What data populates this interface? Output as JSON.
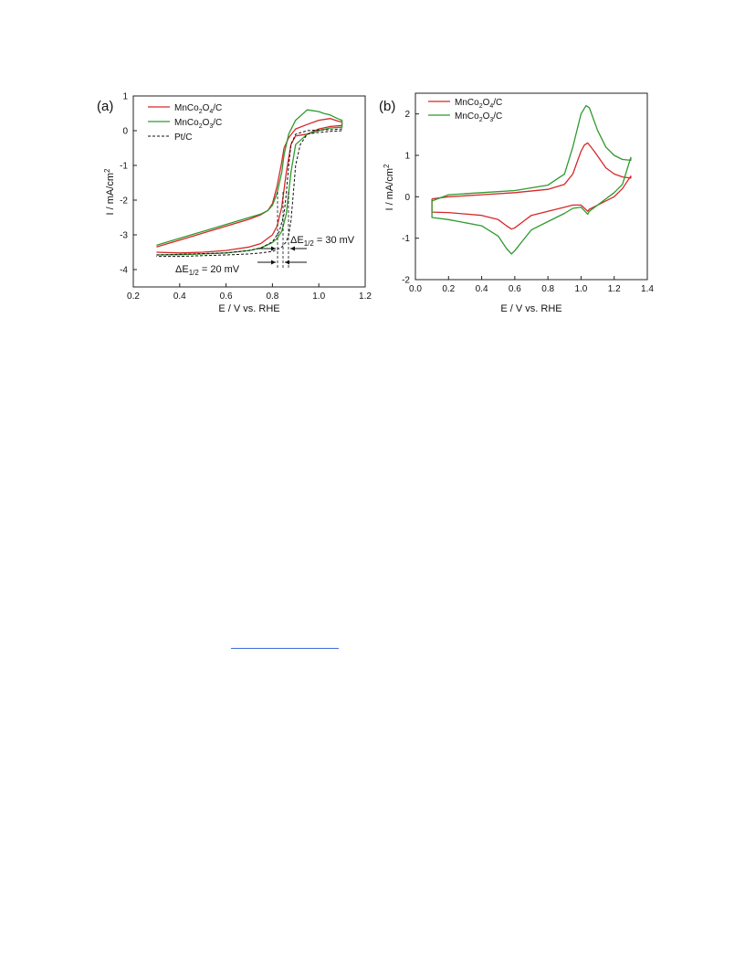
{
  "chart_data": [
    {
      "panel_label": "(a)",
      "type": "line",
      "xlabel": "E /  V vs. RHE",
      "ylabel": "I / mA/cm",
      "ylabel_sup": "2",
      "xlim": [
        0.2,
        1.2
      ],
      "ylim": [
        -4.5,
        1
      ],
      "xticks": [
        0.2,
        0.4,
        0.6,
        0.8,
        1.0,
        1.2
      ],
      "xtick_labels": [
        "0.2",
        "0.4",
        "0.6",
        "0.8",
        "1.0",
        "1.2"
      ],
      "yticks": [
        1,
        0,
        -1,
        -2,
        -3,
        -4
      ],
      "ytick_labels": [
        "1",
        "0",
        "-1",
        "-2",
        "-3",
        "-4"
      ],
      "grid": false,
      "legend_position": "top-left",
      "series": [
        {
          "name": "MnCo",
          "sub1": "2",
          "mid": "O",
          "sub2": "4",
          "tail": "/C",
          "color": "#d62728",
          "dash": false,
          "x": [
            0.3,
            0.4,
            0.5,
            0.6,
            0.7,
            0.75,
            0.78,
            0.8,
            0.82,
            0.84,
            0.85,
            0.87,
            0.9,
            0.95,
            1.0,
            1.05,
            1.08,
            1.1,
            1.1,
            1.05,
            1.0,
            0.95,
            0.9,
            0.88,
            0.86,
            0.84,
            0.82,
            0.8,
            0.75,
            0.7,
            0.6,
            0.5,
            0.4,
            0.3
          ],
          "y": [
            -3.35,
            -3.15,
            -2.95,
            -2.75,
            -2.55,
            -2.42,
            -2.3,
            -2.1,
            -1.6,
            -0.9,
            -0.5,
            -0.2,
            0.05,
            0.18,
            0.3,
            0.35,
            0.28,
            0.25,
            0.15,
            0.12,
            0.05,
            -0.1,
            -0.15,
            -0.4,
            -1.2,
            -2.2,
            -2.75,
            -3.0,
            -3.25,
            -3.35,
            -3.45,
            -3.5,
            -3.52,
            -3.5
          ]
        },
        {
          "name": "MnCo",
          "sub1": "2",
          "mid": "O",
          "sub2": "3",
          "tail": "/C",
          "color": "#2e9a2e",
          "dash": false,
          "x": [
            0.3,
            0.4,
            0.5,
            0.6,
            0.7,
            0.75,
            0.78,
            0.8,
            0.82,
            0.84,
            0.85,
            0.87,
            0.9,
            0.95,
            1.0,
            1.02,
            1.05,
            1.08,
            1.1,
            1.1,
            1.05,
            1.0,
            0.95,
            0.9,
            0.88,
            0.86,
            0.84,
            0.82,
            0.8,
            0.75,
            0.7,
            0.6,
            0.5,
            0.4,
            0.3
          ],
          "y": [
            -3.3,
            -3.1,
            -2.9,
            -2.7,
            -2.5,
            -2.4,
            -2.3,
            -2.15,
            -1.8,
            -1.2,
            -0.7,
            -0.1,
            0.3,
            0.6,
            0.55,
            0.5,
            0.45,
            0.35,
            0.3,
            0.1,
            0.08,
            0.0,
            -0.1,
            -0.4,
            -1.2,
            -2.4,
            -2.9,
            -3.1,
            -3.22,
            -3.38,
            -3.45,
            -3.52,
            -3.55,
            -3.57,
            -3.58
          ]
        },
        {
          "name": "Pt/C",
          "sub1": "",
          "mid": "",
          "sub2": "",
          "tail": "",
          "color": "#111111",
          "dash": true,
          "x": [
            0.3,
            0.4,
            0.5,
            0.6,
            0.7,
            0.75,
            0.8,
            0.83,
            0.85,
            0.86,
            0.87,
            0.88,
            0.9,
            0.95,
            1.0,
            1.05,
            1.1,
            1.1,
            1.05,
            1.0,
            0.95,
            0.92,
            0.9,
            0.89,
            0.88,
            0.87,
            0.86,
            0.84,
            0.82,
            0.8,
            0.75,
            0.7,
            0.6,
            0.5,
            0.4,
            0.3
          ],
          "y": [
            -3.58,
            -3.56,
            -3.54,
            -3.52,
            -3.45,
            -3.38,
            -3.2,
            -2.9,
            -2.4,
            -1.8,
            -1.0,
            -0.4,
            -0.1,
            0.0,
            0.02,
            0.03,
            0.05,
            0.0,
            -0.02,
            -0.05,
            -0.1,
            -0.4,
            -1.0,
            -1.8,
            -2.6,
            -3.0,
            -3.2,
            -3.35,
            -3.42,
            -3.48,
            -3.52,
            -3.55,
            -3.58,
            -3.6,
            -3.62,
            -3.62
          ]
        }
      ],
      "annotations": [
        {
          "prefix": "ΔE",
          "sub": "1/2",
          "suffix": " = 30 mV"
        },
        {
          "prefix": "ΔE",
          "sub": "1/2",
          "suffix": " = 20 mV"
        }
      ]
    },
    {
      "panel_label": "(b)",
      "type": "line",
      "xlabel": "E /  V vs. RHE",
      "ylabel": "I / mA/cm",
      "ylabel_sup": "2",
      "xlim": [
        0.0,
        1.4
      ],
      "ylim": [
        -2,
        2.5
      ],
      "xticks": [
        0.0,
        0.2,
        0.4,
        0.6,
        0.8,
        1.0,
        1.2,
        1.4
      ],
      "xtick_labels": [
        "0.0",
        "0.2",
        "0.4",
        "0.6",
        "0.8",
        "1.0",
        "1.2",
        "1.4"
      ],
      "yticks": [
        2,
        1,
        0,
        -1,
        -2
      ],
      "ytick_labels": [
        "2",
        "1",
        "0",
        "-1",
        "-2"
      ],
      "grid": false,
      "legend_position": "top-left",
      "series": [
        {
          "name": "MnCo",
          "sub1": "2",
          "mid": "O",
          "sub2": "4",
          "tail": "/C",
          "color": "#d62728",
          "dash": false,
          "x": [
            0.1,
            0.2,
            0.4,
            0.6,
            0.8,
            0.9,
            0.95,
            1.0,
            1.02,
            1.04,
            1.08,
            1.15,
            1.2,
            1.25,
            1.3,
            1.3,
            1.25,
            1.2,
            1.1,
            1.05,
            1.04,
            1.0,
            0.95,
            0.9,
            0.8,
            0.7,
            0.65,
            0.6,
            0.58,
            0.55,
            0.5,
            0.4,
            0.2,
            0.1,
            0.1
          ],
          "y": [
            -0.05,
            0.0,
            0.05,
            0.1,
            0.18,
            0.3,
            0.55,
            1.1,
            1.25,
            1.3,
            1.1,
            0.7,
            0.55,
            0.48,
            0.45,
            0.5,
            0.2,
            0.0,
            -0.2,
            -0.3,
            -0.35,
            -0.2,
            -0.2,
            -0.25,
            -0.35,
            -0.45,
            -0.6,
            -0.75,
            -0.78,
            -0.7,
            -0.55,
            -0.45,
            -0.38,
            -0.37,
            -0.05
          ]
        },
        {
          "name": "MnCo",
          "sub1": "2",
          "mid": "O",
          "sub2": "3",
          "tail": "/C",
          "color": "#2e9a2e",
          "dash": false,
          "x": [
            0.1,
            0.2,
            0.4,
            0.6,
            0.8,
            0.9,
            0.95,
            1.0,
            1.03,
            1.05,
            1.1,
            1.15,
            1.2,
            1.25,
            1.3,
            1.3,
            1.25,
            1.2,
            1.1,
            1.05,
            1.04,
            1.0,
            0.95,
            0.9,
            0.8,
            0.7,
            0.65,
            0.6,
            0.58,
            0.55,
            0.5,
            0.4,
            0.2,
            0.1,
            0.1
          ],
          "y": [
            -0.1,
            0.05,
            0.1,
            0.15,
            0.28,
            0.55,
            1.2,
            2.0,
            2.2,
            2.15,
            1.6,
            1.2,
            1.0,
            0.9,
            0.88,
            0.95,
            0.3,
            0.1,
            -0.2,
            -0.35,
            -0.42,
            -0.25,
            -0.28,
            -0.4,
            -0.6,
            -0.8,
            -1.05,
            -1.3,
            -1.38,
            -1.25,
            -0.95,
            -0.7,
            -0.55,
            -0.5,
            -0.1
          ]
        }
      ]
    }
  ]
}
